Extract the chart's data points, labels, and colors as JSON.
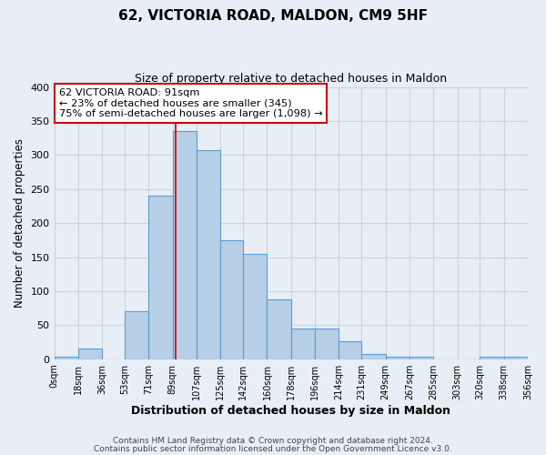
{
  "title": "62, VICTORIA ROAD, MALDON, CM9 5HF",
  "subtitle": "Size of property relative to detached houses in Maldon",
  "xlabel": "Distribution of detached houses by size in Maldon",
  "ylabel": "Number of detached properties",
  "bin_edges": [
    0,
    18,
    36,
    53,
    71,
    89,
    107,
    125,
    142,
    160,
    178,
    196,
    214,
    231,
    249,
    267,
    285,
    303,
    320,
    338,
    356
  ],
  "bar_heights": [
    3,
    15,
    0,
    70,
    240,
    335,
    307,
    175,
    155,
    88,
    45,
    45,
    27,
    7,
    3,
    3,
    0,
    0,
    3,
    3
  ],
  "tick_labels": [
    "0sqm",
    "18sqm",
    "36sqm",
    "53sqm",
    "71sqm",
    "89sqm",
    "107sqm",
    "125sqm",
    "142sqm",
    "160sqm",
    "178sqm",
    "196sqm",
    "214sqm",
    "231sqm",
    "249sqm",
    "267sqm",
    "285sqm",
    "303sqm",
    "320sqm",
    "338sqm",
    "356sqm"
  ],
  "bar_color": "#b8cfe8",
  "bar_edge_color": "#5b9bd5",
  "vline_x": 91,
  "vline_color": "#cc0000",
  "ylim": [
    0,
    400
  ],
  "yticks": [
    0,
    50,
    100,
    150,
    200,
    250,
    300,
    350,
    400
  ],
  "grid_color": "#c8d4e0",
  "bg_color": "#e8eef5",
  "annotation_text": "62 VICTORIA ROAD: 91sqm\n← 23% of detached houses are smaller (345)\n75% of semi-detached houses are larger (1,098) →",
  "annotation_box_color": "#ffffff",
  "annotation_box_edge_color": "#cc0000",
  "footer1": "Contains HM Land Registry data © Crown copyright and database right 2024.",
  "footer2": "Contains public sector information licensed under the Open Government Licence v3.0."
}
